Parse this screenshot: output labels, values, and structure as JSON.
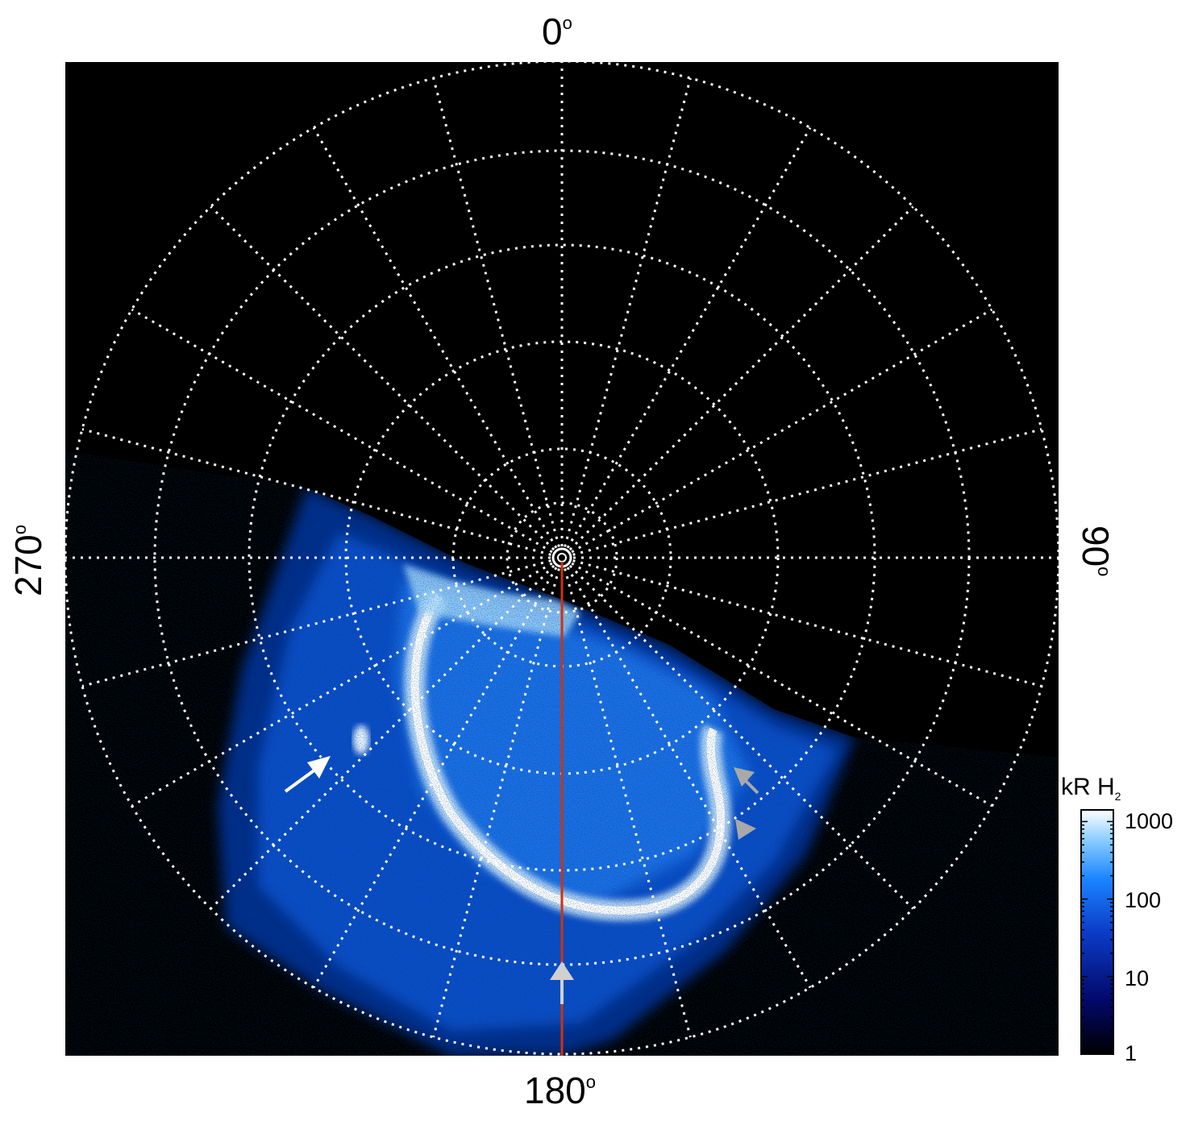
{
  "polar_plot": {
    "angle_labels": {
      "top": "0",
      "right": "90",
      "bottom": "180",
      "left": "270",
      "degree_symbol": "o"
    },
    "background_color": "#000000",
    "grid_color": "#ffffff",
    "meridian_line_color": "#cc3311",
    "aurora_colors": [
      "#02083a",
      "#0a3ab8",
      "#1f7fff",
      "#7ec6ff",
      "#ffffff"
    ],
    "annotations": [
      {
        "type": "arrow",
        "color": "#ffffff",
        "icon": "arrow-icon"
      },
      {
        "type": "arrow",
        "color": "#a9a9a9",
        "icon": "arrow-icon"
      },
      {
        "type": "arrowhead",
        "color": "#a9a9a9",
        "icon": "triangle-icon"
      },
      {
        "type": "arrowhead",
        "color": "#d0d0d0",
        "icon": "triangle-icon"
      }
    ]
  },
  "colorbar": {
    "title": "kR H",
    "title_subscript": "2",
    "ticks": [
      "1000",
      "100",
      "10",
      "1"
    ],
    "scale": "log"
  }
}
